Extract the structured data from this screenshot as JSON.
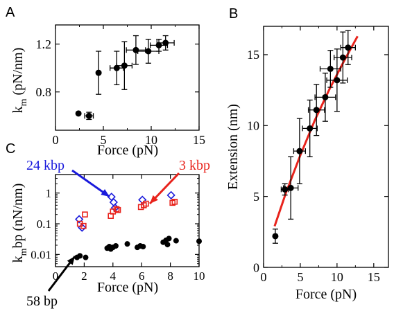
{
  "colors": {
    "black": "#000000",
    "blue": "#1a1adc",
    "red": "#e8231c"
  },
  "chart_data": [
    {
      "panel": "A",
      "type": "scatter",
      "xlabel": "Force (pN)",
      "ylabel": "k",
      "ylabel_sub": "m",
      "ylabel_unit": " (pN/nm)",
      "xlim": [
        0,
        15
      ],
      "ylim": [
        0.48,
        1.36
      ],
      "xticks": [
        0,
        5,
        10,
        15
      ],
      "yticks": [
        0.8,
        1.2
      ],
      "ytick_labels": [
        "0.8",
        "1.2"
      ],
      "points": [
        {
          "x": 2.4,
          "y": 0.62,
          "xerr": 0,
          "yerr": 0
        },
        {
          "x": 3.5,
          "y": 0.6,
          "xerr": 0.45,
          "yerr": 0.03
        },
        {
          "x": 4.5,
          "y": 0.96,
          "xerr": 0,
          "yerr": 0.18
        },
        {
          "x": 6.4,
          "y": 1.0,
          "xerr": 0.7,
          "yerr": 0.14
        },
        {
          "x": 7.2,
          "y": 1.02,
          "xerr": 0.8,
          "yerr": 0.2
        },
        {
          "x": 8.4,
          "y": 1.15,
          "xerr": 1.0,
          "yerr": 0.12
        },
        {
          "x": 9.7,
          "y": 1.14,
          "xerr": 1.1,
          "yerr": 0.1
        },
        {
          "x": 10.8,
          "y": 1.19,
          "xerr": 0.9,
          "yerr": 0.05
        },
        {
          "x": 11.5,
          "y": 1.21,
          "xerr": 0.9,
          "yerr": 0.06
        }
      ]
    },
    {
      "panel": "B",
      "type": "scatter",
      "xlabel": "Force (pN)",
      "ylabel": "Extension (nm)",
      "xlim": [
        0,
        17
      ],
      "ylim": [
        0,
        17
      ],
      "xticks": [
        0,
        5,
        10,
        15
      ],
      "yticks": [
        0,
        5,
        10,
        15
      ],
      "points": [
        {
          "x": 1.6,
          "y": 2.2,
          "xerr": 0,
          "yerr": 0.5
        },
        {
          "x": 2.9,
          "y": 5.5,
          "xerr": 0.5,
          "yerr": 0.4
        },
        {
          "x": 3.7,
          "y": 5.6,
          "xerr": 1.0,
          "yerr": 2.2
        },
        {
          "x": 4.9,
          "y": 8.2,
          "xerr": 0.8,
          "yerr": 2.3
        },
        {
          "x": 6.3,
          "y": 9.8,
          "xerr": 1.0,
          "yerr": 2.0
        },
        {
          "x": 7.2,
          "y": 11.1,
          "xerr": 1.1,
          "yerr": 1.8
        },
        {
          "x": 8.4,
          "y": 12.0,
          "xerr": 1.4,
          "yerr": 1.7
        },
        {
          "x": 9.1,
          "y": 14.0,
          "xerr": 1.4,
          "yerr": 1.3
        },
        {
          "x": 10.0,
          "y": 13.2,
          "xerr": 1.4,
          "yerr": 2.2
        },
        {
          "x": 10.8,
          "y": 14.8,
          "xerr": 1.2,
          "yerr": 1.8
        },
        {
          "x": 11.5,
          "y": 15.5,
          "xerr": 1.0,
          "yerr": 1.2
        }
      ],
      "fit_line": [
        [
          1.5,
          2.9
        ],
        [
          3,
          5.2
        ],
        [
          5,
          7.9
        ],
        [
          7,
          10.4
        ],
        [
          9,
          12.6
        ],
        [
          11,
          14.6
        ],
        [
          12.8,
          16.3
        ]
      ]
    },
    {
      "panel": "C",
      "type": "scatter",
      "xlabel": "Force (pN)",
      "ylabel": "k",
      "ylabel_sub": "m",
      "ylabel_unit": "bp (nN/nm)",
      "xlim": [
        0,
        10
      ],
      "ylim": [
        0.004,
        4
      ],
      "yscale": "log",
      "xticks": [
        0,
        2,
        4,
        6,
        8,
        10
      ],
      "yticks": [
        0.01,
        0.1,
        1
      ],
      "ytick_labels": [
        "0.01",
        "0.1",
        "1"
      ],
      "series": [
        {
          "name": "24 kbp",
          "marker": "diamond",
          "color": "#1a1adc",
          "x": [
            1.65,
            1.85,
            3.9,
            4.05,
            4.15,
            6.05,
            8.05
          ],
          "y": [
            0.14,
            0.075,
            0.75,
            0.5,
            0.33,
            0.6,
            0.85
          ]
        },
        {
          "name": "3 kbp",
          "marker": "square",
          "color": "#e8231c",
          "x": [
            1.7,
            1.95,
            2.05,
            3.85,
            4.0,
            4.25,
            4.35,
            5.95,
            6.15,
            6.3,
            8.15,
            8.3
          ],
          "y": [
            0.1,
            0.085,
            0.2,
            0.18,
            0.25,
            0.3,
            0.28,
            0.35,
            0.4,
            0.45,
            0.48,
            0.52
          ]
        },
        {
          "name": "58 bp",
          "marker": "circle",
          "color": "#000000",
          "x": [
            1.5,
            1.7,
            2.1,
            3.6,
            3.75,
            3.85,
            4.0,
            4.2,
            5.0,
            5.7,
            5.9,
            6.1,
            7.5,
            7.7,
            7.8,
            7.9,
            8.4,
            10.0
          ],
          "y": [
            0.008,
            0.009,
            0.008,
            0.016,
            0.018,
            0.015,
            0.017,
            0.019,
            0.022,
            0.017,
            0.019,
            0.018,
            0.025,
            0.029,
            0.021,
            0.033,
            0.028,
            0.027
          ]
        }
      ],
      "annotations": [
        {
          "text": "24 kbp",
          "color": "#1a1adc"
        },
        {
          "text": "3 kbp",
          "color": "#e8231c"
        },
        {
          "text": "58 bp",
          "color": "#000000"
        }
      ]
    }
  ]
}
